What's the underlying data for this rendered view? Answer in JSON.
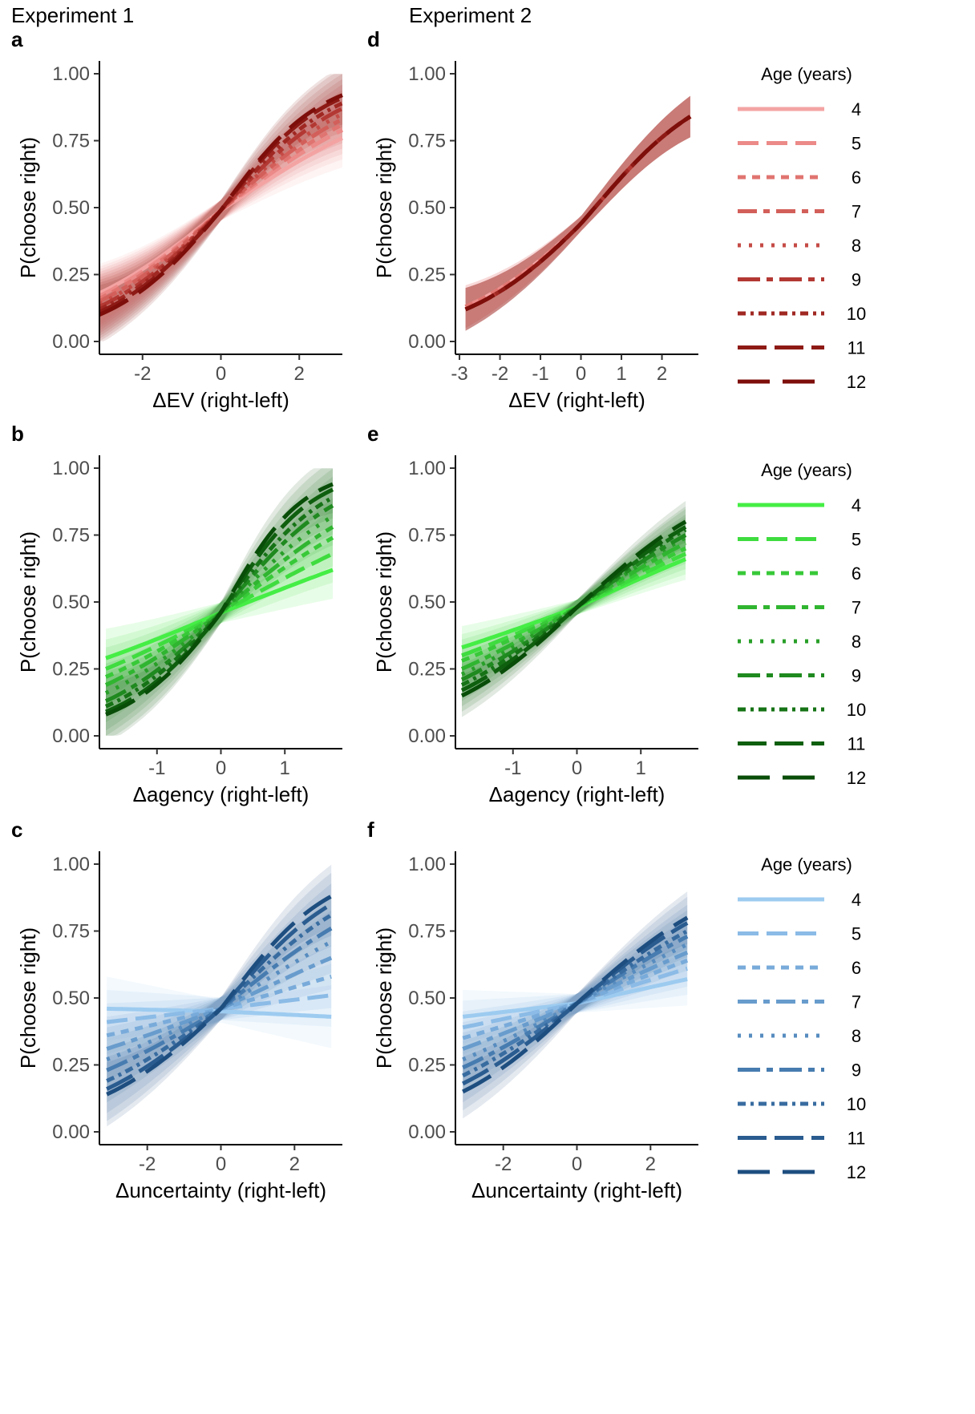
{
  "experiments": [
    "Experiment 1",
    "Experiment 2"
  ],
  "legend_title": "Age (years)",
  "ages": [
    "4",
    "5",
    "6",
    "7",
    "8",
    "9",
    "10",
    "11",
    "12"
  ],
  "palettes": {
    "red": [
      "#f4a3a3",
      "#eb8a88",
      "#e07470",
      "#d35f5a",
      "#c54b46",
      "#b33833",
      "#a02823",
      "#8e1a15",
      "#7d0e0a"
    ],
    "green": [
      "#45ee45",
      "#3fdc3f",
      "#38c938",
      "#30b530",
      "#289f28",
      "#1f8a1f",
      "#167316",
      "#0e5f0e",
      "#084d08"
    ],
    "blue": [
      "#9dcbf0",
      "#8bbbe6",
      "#79abda",
      "#689ccd",
      "#578cbf",
      "#477cb0",
      "#386ca0",
      "#2a5c90",
      "#1e4e80"
    ]
  },
  "chart_data": [
    {
      "id": "a",
      "type": "line",
      "experiment": "Experiment 1",
      "palette": "red",
      "title": "",
      "xlabel": "ΔEV (right-left)",
      "ylabel": "P(choose right)",
      "xlim": [
        -3.1,
        3.1
      ],
      "ylim": [
        0,
        1
      ],
      "xticks": [
        -2,
        0,
        2
      ],
      "xtick_labels": [
        "-2",
        "0",
        "2"
      ],
      "yticks": [
        0,
        0.25,
        0.5,
        0.75,
        1.0
      ],
      "ytick_labels": [
        "0.00",
        "0.25",
        "0.50",
        "0.75",
        "1.00"
      ],
      "curve_x_range": [
        -3.1,
        3.1
      ],
      "series": [
        {
          "name": "4",
          "values_at_xmin_x0_xmax": [
            0.18,
            0.49,
            0.76
          ]
        },
        {
          "name": "5",
          "values_at_xmin_x0_xmax": [
            0.17,
            0.49,
            0.79
          ]
        },
        {
          "name": "6",
          "values_at_xmin_x0_xmax": [
            0.16,
            0.49,
            0.81
          ]
        },
        {
          "name": "7",
          "values_at_xmin_x0_xmax": [
            0.15,
            0.49,
            0.83
          ]
        },
        {
          "name": "8",
          "values_at_xmin_x0_xmax": [
            0.14,
            0.49,
            0.85
          ]
        },
        {
          "name": "9",
          "values_at_xmin_x0_xmax": [
            0.13,
            0.49,
            0.87
          ]
        },
        {
          "name": "10",
          "values_at_xmin_x0_xmax": [
            0.12,
            0.49,
            0.89
          ]
        },
        {
          "name": "11",
          "values_at_xmin_x0_xmax": [
            0.11,
            0.49,
            0.91
          ]
        },
        {
          "name": "12",
          "values_at_xmin_x0_xmax": [
            0.1,
            0.49,
            0.92
          ]
        }
      ],
      "ribbon_half_width": 0.11
    },
    {
      "id": "b",
      "type": "line",
      "experiment": "Experiment 1",
      "palette": "green",
      "title": "",
      "xlabel": "Δagency (right-left)",
      "ylabel": "P(choose right)",
      "xlim": [
        -1.9,
        1.9
      ],
      "ylim": [
        0,
        1
      ],
      "xticks": [
        -1,
        0,
        1
      ],
      "xtick_labels": [
        "-1",
        "0",
        "1"
      ],
      "yticks": [
        0,
        0.25,
        0.5,
        0.75,
        1.0
      ],
      "ytick_labels": [
        "0.00",
        "0.25",
        "0.50",
        "0.75",
        "1.00"
      ],
      "curve_x_range": [
        -1.8,
        1.75
      ],
      "series": [
        {
          "name": "4",
          "values_at_xmin_x0_xmax": [
            0.29,
            0.46,
            0.62
          ]
        },
        {
          "name": "5",
          "values_at_xmin_x0_xmax": [
            0.25,
            0.46,
            0.68
          ]
        },
        {
          "name": "6",
          "values_at_xmin_x0_xmax": [
            0.22,
            0.46,
            0.74
          ]
        },
        {
          "name": "7",
          "values_at_xmin_x0_xmax": [
            0.19,
            0.46,
            0.78
          ]
        },
        {
          "name": "8",
          "values_at_xmin_x0_xmax": [
            0.16,
            0.46,
            0.82
          ]
        },
        {
          "name": "9",
          "values_at_xmin_x0_xmax": [
            0.13,
            0.46,
            0.86
          ]
        },
        {
          "name": "10",
          "values_at_xmin_x0_xmax": [
            0.11,
            0.46,
            0.89
          ]
        },
        {
          "name": "11",
          "values_at_xmin_x0_xmax": [
            0.09,
            0.46,
            0.92
          ]
        },
        {
          "name": "12",
          "values_at_xmin_x0_xmax": [
            0.08,
            0.46,
            0.94
          ]
        }
      ],
      "ribbon_half_width": 0.11
    },
    {
      "id": "c",
      "type": "line",
      "experiment": "Experiment 1",
      "palette": "blue",
      "title": "",
      "xlabel": "Δuncertainty (right-left)",
      "ylabel": "P(choose right)",
      "xlim": [
        -3.3,
        3.3
      ],
      "ylim": [
        0,
        1
      ],
      "xticks": [
        -2,
        0,
        2
      ],
      "xtick_labels": [
        "-2",
        "0",
        "2"
      ],
      "yticks": [
        0,
        0.25,
        0.5,
        0.75,
        1.0
      ],
      "ytick_labels": [
        "0.00",
        "0.25",
        "0.50",
        "0.75",
        "1.00"
      ],
      "curve_x_range": [
        -3.1,
        3.0
      ],
      "series": [
        {
          "name": "4",
          "values_at_xmin_x0_xmax": [
            0.46,
            0.45,
            0.43
          ]
        },
        {
          "name": "5",
          "values_at_xmin_x0_xmax": [
            0.41,
            0.46,
            0.51
          ]
        },
        {
          "name": "6",
          "values_at_xmin_x0_xmax": [
            0.36,
            0.46,
            0.58
          ]
        },
        {
          "name": "7",
          "values_at_xmin_x0_xmax": [
            0.31,
            0.46,
            0.65
          ]
        },
        {
          "name": "8",
          "values_at_xmin_x0_xmax": [
            0.27,
            0.46,
            0.71
          ]
        },
        {
          "name": "9",
          "values_at_xmin_x0_xmax": [
            0.23,
            0.46,
            0.76
          ]
        },
        {
          "name": "10",
          "values_at_xmin_x0_xmax": [
            0.19,
            0.46,
            0.81
          ]
        },
        {
          "name": "11",
          "values_at_xmin_x0_xmax": [
            0.16,
            0.46,
            0.85
          ]
        },
        {
          "name": "12",
          "values_at_xmin_x0_xmax": [
            0.14,
            0.46,
            0.88
          ]
        }
      ],
      "ribbon_half_width": 0.12
    },
    {
      "id": "d",
      "type": "line",
      "experiment": "Experiment 2",
      "palette": "red",
      "title": "",
      "xlabel": "ΔEV (right-left)",
      "ylabel": "P(choose right)",
      "xlim": [
        -3.1,
        2.9
      ],
      "ylim": [
        0,
        1
      ],
      "xticks": [
        -3,
        -2,
        -1,
        0,
        1,
        2
      ],
      "xtick_labels": [
        "-3",
        "-2",
        "-1",
        "0",
        "1",
        "2"
      ],
      "yticks": [
        0,
        0.25,
        0.5,
        0.75,
        1.0
      ],
      "ytick_labels": [
        "0.00",
        "0.25",
        "0.50",
        "0.75",
        "1.00"
      ],
      "curve_x_range": [
        -2.85,
        2.7
      ],
      "series": [
        {
          "name": "4",
          "values_at_xmin_x0_xmax": [
            0.13,
            0.44,
            0.84
          ]
        },
        {
          "name": "5",
          "values_at_xmin_x0_xmax": [
            0.13,
            0.44,
            0.84
          ]
        },
        {
          "name": "6",
          "values_at_xmin_x0_xmax": [
            0.13,
            0.44,
            0.84
          ]
        },
        {
          "name": "7",
          "values_at_xmin_x0_xmax": [
            0.12,
            0.44,
            0.84
          ]
        },
        {
          "name": "8",
          "values_at_xmin_x0_xmax": [
            0.12,
            0.44,
            0.84
          ]
        },
        {
          "name": "9",
          "values_at_xmin_x0_xmax": [
            0.12,
            0.44,
            0.84
          ]
        },
        {
          "name": "10",
          "values_at_xmin_x0_xmax": [
            0.12,
            0.44,
            0.84
          ]
        },
        {
          "name": "11",
          "values_at_xmin_x0_xmax": [
            0.12,
            0.44,
            0.84
          ]
        },
        {
          "name": "12",
          "values_at_xmin_x0_xmax": [
            0.12,
            0.44,
            0.84
          ]
        }
      ],
      "ribbon_half_width": 0.08
    },
    {
      "id": "e",
      "type": "line",
      "experiment": "Experiment 2",
      "palette": "green",
      "title": "",
      "xlabel": "Δagency (right-left)",
      "ylabel": "P(choose right)",
      "xlim": [
        -1.9,
        1.9
      ],
      "ylim": [
        0,
        1
      ],
      "xticks": [
        -1,
        0,
        1
      ],
      "xtick_labels": [
        "-1",
        "0",
        "1"
      ],
      "yticks": [
        0,
        0.25,
        0.5,
        0.75,
        1.0
      ],
      "ytick_labels": [
        "0.00",
        "0.25",
        "0.50",
        "0.75",
        "1.00"
      ],
      "curve_x_range": [
        -1.8,
        1.7
      ],
      "series": [
        {
          "name": "4",
          "values_at_xmin_x0_xmax": [
            0.33,
            0.48,
            0.66
          ]
        },
        {
          "name": "5",
          "values_at_xmin_x0_xmax": [
            0.3,
            0.48,
            0.68
          ]
        },
        {
          "name": "6",
          "values_at_xmin_x0_xmax": [
            0.28,
            0.48,
            0.7
          ]
        },
        {
          "name": "7",
          "values_at_xmin_x0_xmax": [
            0.25,
            0.48,
            0.72
          ]
        },
        {
          "name": "8",
          "values_at_xmin_x0_xmax": [
            0.23,
            0.48,
            0.74
          ]
        },
        {
          "name": "9",
          "values_at_xmin_x0_xmax": [
            0.21,
            0.48,
            0.75
          ]
        },
        {
          "name": "10",
          "values_at_xmin_x0_xmax": [
            0.19,
            0.48,
            0.77
          ]
        },
        {
          "name": "11",
          "values_at_xmin_x0_xmax": [
            0.17,
            0.48,
            0.78
          ]
        },
        {
          "name": "12",
          "values_at_xmin_x0_xmax": [
            0.15,
            0.48,
            0.8
          ]
        }
      ],
      "ribbon_half_width": 0.08
    },
    {
      "id": "f",
      "type": "line",
      "experiment": "Experiment 2",
      "palette": "blue",
      "title": "",
      "xlabel": "Δuncertainty (right-left)",
      "ylabel": "P(choose right)",
      "xlim": [
        -3.3,
        3.3
      ],
      "ylim": [
        0,
        1
      ],
      "xticks": [
        -2,
        0,
        2
      ],
      "xtick_labels": [
        "-2",
        "0",
        "2"
      ],
      "yticks": [
        0,
        0.25,
        0.5,
        0.75,
        1.0
      ],
      "ytick_labels": [
        "0.00",
        "0.25",
        "0.50",
        "0.75",
        "1.00"
      ],
      "curve_x_range": [
        -3.1,
        3.0
      ],
      "series": [
        {
          "name": "4",
          "values_at_xmin_x0_xmax": [
            0.43,
            0.48,
            0.57
          ]
        },
        {
          "name": "5",
          "values_at_xmin_x0_xmax": [
            0.39,
            0.48,
            0.61
          ]
        },
        {
          "name": "6",
          "values_at_xmin_x0_xmax": [
            0.35,
            0.48,
            0.64
          ]
        },
        {
          "name": "7",
          "values_at_xmin_x0_xmax": [
            0.31,
            0.48,
            0.67
          ]
        },
        {
          "name": "8",
          "values_at_xmin_x0_xmax": [
            0.27,
            0.48,
            0.7
          ]
        },
        {
          "name": "9",
          "values_at_xmin_x0_xmax": [
            0.24,
            0.48,
            0.73
          ]
        },
        {
          "name": "10",
          "values_at_xmin_x0_xmax": [
            0.21,
            0.48,
            0.75
          ]
        },
        {
          "name": "11",
          "values_at_xmin_x0_xmax": [
            0.18,
            0.48,
            0.78
          ]
        },
        {
          "name": "12",
          "values_at_xmin_x0_xmax": [
            0.15,
            0.48,
            0.8
          ]
        }
      ],
      "ribbon_half_width": 0.1
    }
  ]
}
